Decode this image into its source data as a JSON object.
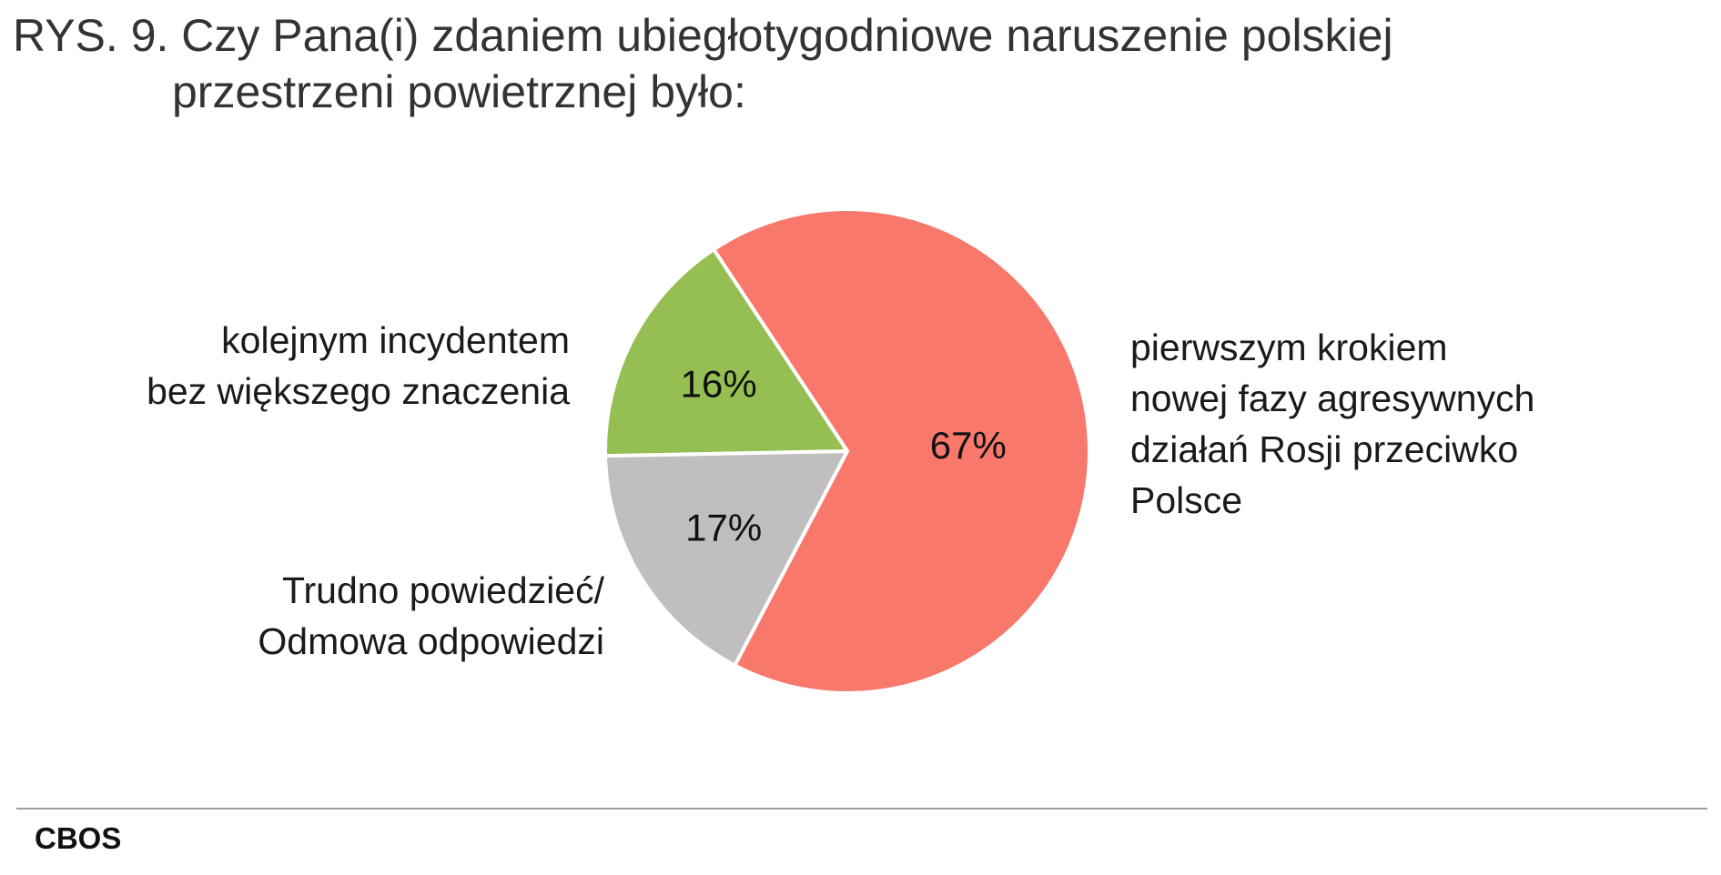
{
  "title": {
    "line1": "RYS. 9. Czy Pana(i) zdaniem ubiegłotygodniowe naruszenie polskiej",
    "line2": "przestrzeni powietrznej było:"
  },
  "chart_data": {
    "type": "pie",
    "title": "RYS. 9. Czy Pana(i) zdaniem ubiegłotygodniowe naruszenie polskiej przestrzeni powietrznej było:",
    "slices": [
      {
        "label": "pierwszym krokiem\nnowej fazy agresywnych\ndziałań Rosji przeciwko\nPolsce",
        "value": 67,
        "value_label": "67%",
        "color": "#f8786c"
      },
      {
        "label": "Trudno powiedzieć/\nOdmowa odpowiedzi",
        "value": 17,
        "value_label": "17%",
        "color": "#bfbfbf"
      },
      {
        "label": "kolejnym incydentem\nbez większego znaczenia",
        "value": 16,
        "value_label": "16%",
        "color": "#95be53"
      }
    ],
    "start_angle_deg": -33.5,
    "direction": "clockwise",
    "slice_border_color": "#ffffff"
  },
  "source": "CBOS"
}
